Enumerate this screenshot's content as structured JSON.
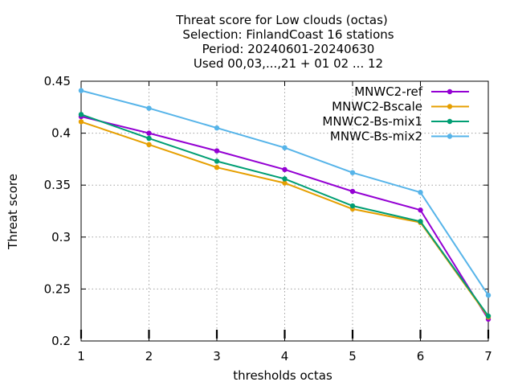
{
  "chart_data": {
    "type": "line",
    "title": [
      "Threat score  for Low clouds (octas)",
      "Selection: FinlandCoast      16 stations",
      "Period: 20240601-20240630",
      "Used 00,03,...,21 + 01 02 ... 12"
    ],
    "xlabel": "thresholds octas",
    "ylabel": "Threat score",
    "x": [
      1,
      2,
      3,
      4,
      5,
      6,
      7
    ],
    "xlim": [
      1,
      7
    ],
    "ylim": [
      0.2,
      0.45
    ],
    "yticks": [
      "0.2",
      "0.25",
      "0.3",
      "0.35",
      "0.4",
      "0.45"
    ],
    "xticks": [
      "1",
      "2",
      "3",
      "4",
      "5",
      "6",
      "7"
    ],
    "grid": true,
    "legend_position": "top-right",
    "series": [
      {
        "name": "MNWC2-ref",
        "color": "#9400d3",
        "values": [
          0.416,
          0.4,
          0.383,
          0.365,
          0.344,
          0.326,
          0.221
        ]
      },
      {
        "name": "MNWC2-Bscale",
        "color": "#e69f00",
        "values": [
          0.411,
          0.389,
          0.367,
          0.352,
          0.327,
          0.314,
          0.223
        ]
      },
      {
        "name": "MNWC2-Bs-mix1",
        "color": "#009e73",
        "values": [
          0.418,
          0.395,
          0.373,
          0.356,
          0.33,
          0.315,
          0.224
        ]
      },
      {
        "name": "MNWC-Bs-mix2",
        "color": "#56b4e9",
        "values": [
          0.441,
          0.424,
          0.405,
          0.386,
          0.362,
          0.343,
          0.244
        ]
      }
    ]
  }
}
